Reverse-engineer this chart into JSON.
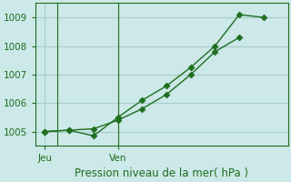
{
  "line1_x": [
    0,
    0.5,
    1.0,
    1.5,
    2.0,
    2.5,
    3.0,
    3.5,
    4.0
  ],
  "line1_y": [
    1005.0,
    1005.05,
    1005.1,
    1005.4,
    1005.8,
    1006.3,
    1007.0,
    1007.8,
    1008.3
  ],
  "line2_x": [
    0,
    0.5,
    1.0,
    1.5,
    2.0,
    2.5,
    3.0,
    3.5,
    4.0,
    4.5
  ],
  "line2_y": [
    1005.0,
    1005.05,
    1004.85,
    1005.5,
    1006.1,
    1006.6,
    1007.25,
    1008.0,
    1009.1,
    1009.0
  ],
  "line_color": "#1e6e1e",
  "bg_color": "#cce8e8",
  "grid_color": "#aacccc",
  "xlabel": "Pression niveau de la mer( hPa )",
  "ylim": [
    1004.5,
    1009.5
  ],
  "yticks": [
    1005,
    1006,
    1007,
    1008,
    1009
  ],
  "xlim": [
    -0.2,
    5.0
  ],
  "jeu_x": 0.0,
  "ven_x": 1.5,
  "vline_x": [
    0.25,
    1.5
  ],
  "xlabel_fontsize": 8.5,
  "tick_fontsize": 7.5,
  "marker_size": 3.5
}
